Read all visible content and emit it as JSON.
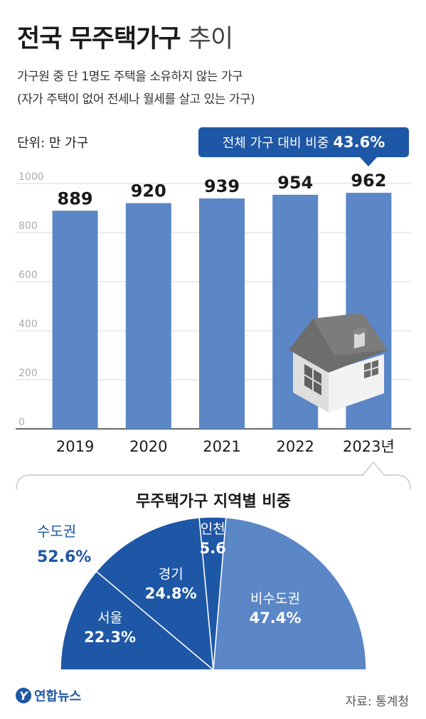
{
  "header": {
    "title_bold": "전국 무주택가구",
    "title_light": "추이",
    "subtitle_1": "가구원 중 단 1명도 주택을 소유하지 않는 가구",
    "subtitle_2": "(자가 주택이 없어 전세나 월세를 살고 있는 가구)",
    "unit": "단위: 만 가구"
  },
  "callout": {
    "label": "전체 가구 대비 비중",
    "value": "43.6%"
  },
  "chart_data": [
    {
      "type": "bar",
      "categories": [
        "2019",
        "2020",
        "2021",
        "2022",
        "2023년"
      ],
      "values": [
        889,
        920,
        939,
        954,
        962
      ],
      "ylim": [
        0,
        1000
      ],
      "yticks": [
        0,
        200,
        400,
        600,
        800,
        1000
      ],
      "grid": true,
      "xlabel": "",
      "ylabel": ""
    },
    {
      "type": "pie",
      "title": "무주택가구 지역별 비중",
      "group_label": "수도권",
      "group_value": "52.6%",
      "slices": [
        {
          "label": "서울",
          "value": 22.3,
          "display": "22.3%"
        },
        {
          "label": "경기",
          "value": 24.8,
          "display": "24.8%"
        },
        {
          "label": "인천",
          "value": 5.6,
          "display": "5.6"
        },
        {
          "label": "비수도권",
          "value": 47.4,
          "display": "47.4%"
        }
      ]
    }
  ],
  "colors": {
    "bar": "#5b87c7",
    "accent": "#1e57a6",
    "dark_slice": "#1e57a6",
    "light_slice": "#5b87c7",
    "grid": "#d8d8d8",
    "tick": "#aaaaaa"
  },
  "icons": {
    "house": "house-illustration"
  },
  "footer": {
    "logo": "연합뉴스",
    "logo_mark": "Y",
    "source": "자료: 통계청"
  }
}
